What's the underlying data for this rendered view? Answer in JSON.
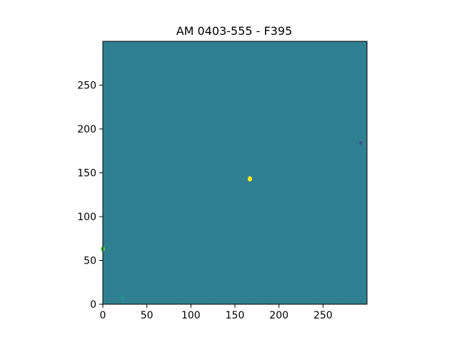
{
  "chart_data": {
    "type": "heatmap",
    "title": "AM 0403-555 - F395",
    "xlabel": "",
    "ylabel": "",
    "xlim": [
      0,
      300
    ],
    "ylim": [
      0,
      300
    ],
    "x_ticks": [
      0,
      50,
      100,
      150,
      200,
      250
    ],
    "y_ticks": [
      0,
      50,
      100,
      150,
      200,
      250
    ],
    "colormap": "viridis",
    "background_color": "#2a7b8c",
    "bright_sources": [
      {
        "x": 167,
        "y": 143,
        "value": 1.0
      },
      {
        "x": 0,
        "y": 63,
        "value": 0.95
      },
      {
        "x": 22,
        "y": 8,
        "value": 0.6
      },
      {
        "x": 293,
        "y": 184,
        "value": 0.35
      }
    ],
    "grid": false
  }
}
